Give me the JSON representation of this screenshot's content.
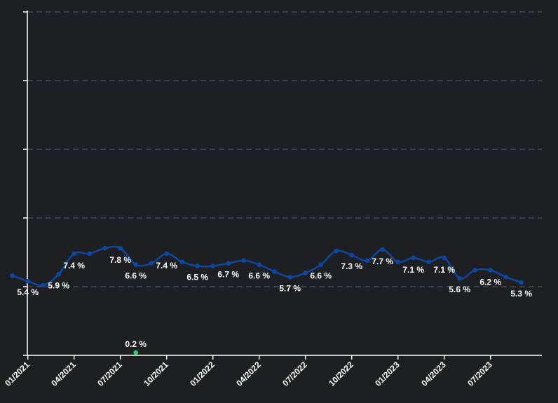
{
  "chart_data": {
    "type": "line",
    "title": "",
    "xlabel": "",
    "ylabel": "",
    "grid": true,
    "x_tick_labels": [
      "01/2021",
      "04/2021",
      "07/2021",
      "10/2021",
      "01/2022",
      "04/2022",
      "07/2022",
      "10/2022",
      "01/2023",
      "04/2023",
      "07/2023"
    ],
    "ylim": [
      0,
      25
    ],
    "series": [
      {
        "color": "#0d47a1",
        "x": [
          "12/2020",
          "01/2021",
          "02/2021",
          "03/2021",
          "04/2021",
          "05/2021",
          "06/2021",
          "07/2021",
          "08/2021",
          "09/2021",
          "10/2021",
          "11/2021",
          "12/2021",
          "01/2022",
          "02/2022",
          "03/2022",
          "04/2022",
          "05/2022",
          "06/2022",
          "07/2022",
          "08/2022",
          "09/2022",
          "10/2022",
          "11/2022",
          "12/2022",
          "01/2023",
          "02/2023",
          "03/2023",
          "04/2023",
          "05/2023",
          "06/2023",
          "07/2023",
          "08/2023",
          "09/2023"
        ],
        "values": [
          5.8,
          5.4,
          5.1,
          5.9,
          7.4,
          7.4,
          7.8,
          7.8,
          6.6,
          6.7,
          7.4,
          6.8,
          6.5,
          6.5,
          6.7,
          6.9,
          6.6,
          6.1,
          5.7,
          6.0,
          6.6,
          7.6,
          7.3,
          6.9,
          7.7,
          6.8,
          7.1,
          6.8,
          7.1,
          5.6,
          6.2,
          6.2,
          5.7,
          5.3
        ],
        "labels": {
          "1": "5.4 %",
          "3": "5.9 %",
          "4": "7.4 %",
          "7": "7.8 %",
          "8": "6.6 %",
          "10": "7.4 %",
          "12": "6.5 %",
          "14": "6.7 %",
          "16": "6.6 %",
          "18": "5.7 %",
          "20": "6.6 %",
          "22": "7.3 %",
          "24": "7.7 %",
          "26": "7.1 %",
          "28": "7.1 %",
          "29": "5.6 %",
          "31": "6.2 %",
          "33": "5.3 %"
        }
      },
      {
        "color": "#2ecc71",
        "x": [
          "08/2021"
        ],
        "values": [
          0.2
        ],
        "labels": {
          "0": "0.2 %"
        }
      }
    ]
  }
}
